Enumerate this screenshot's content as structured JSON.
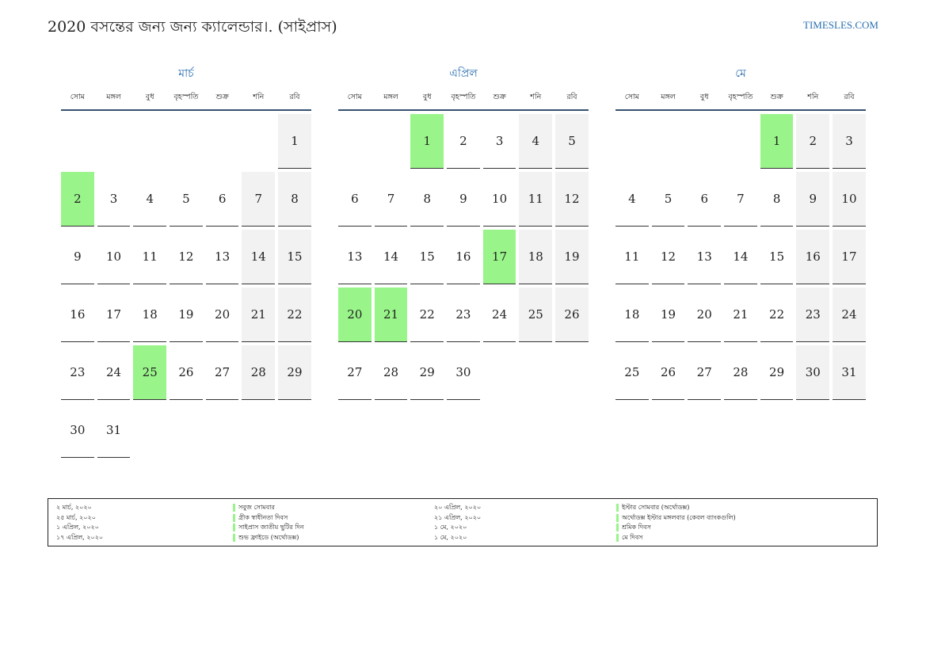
{
  "header": {
    "title": "2020 বসন্তের জন্য জন্য ক্যালেন্ডার।. (সাইপ্রাস)",
    "site": "TIMESLES.COM"
  },
  "colors": {
    "accent": "#2a6fb0",
    "holiday": "#99f58a",
    "weekend": "#f2f2f2"
  },
  "weekdays": [
    "সোম",
    "মঙ্গল",
    "বুধ",
    "বৃহস্পতি",
    "শুক্র",
    "শনি",
    "রবি"
  ],
  "months": [
    {
      "name": "মার্চ",
      "weeks": [
        [
          "",
          "",
          "",
          "",
          "",
          "",
          "1"
        ],
        [
          "2",
          "3",
          "4",
          "5",
          "6",
          "7",
          "8"
        ],
        [
          "9",
          "10",
          "11",
          "12",
          "13",
          "14",
          "15"
        ],
        [
          "16",
          "17",
          "18",
          "19",
          "20",
          "21",
          "22"
        ],
        [
          "23",
          "24",
          "25",
          "26",
          "27",
          "28",
          "29"
        ],
        [
          "30",
          "31",
          "",
          "",
          "",
          "",
          ""
        ]
      ],
      "holidays": [
        "2",
        "25"
      ]
    },
    {
      "name": "এপ্রিল",
      "weeks": [
        [
          "",
          "",
          "1",
          "2",
          "3",
          "4",
          "5"
        ],
        [
          "6",
          "7",
          "8",
          "9",
          "10",
          "11",
          "12"
        ],
        [
          "13",
          "14",
          "15",
          "16",
          "17",
          "18",
          "19"
        ],
        [
          "20",
          "21",
          "22",
          "23",
          "24",
          "25",
          "26"
        ],
        [
          "27",
          "28",
          "29",
          "30",
          "",
          "",
          ""
        ]
      ],
      "holidays": [
        "1",
        "17",
        "20",
        "21"
      ]
    },
    {
      "name": "মে",
      "weeks": [
        [
          "",
          "",
          "",
          "",
          "1",
          "2",
          "3"
        ],
        [
          "4",
          "5",
          "6",
          "7",
          "8",
          "9",
          "10"
        ],
        [
          "11",
          "12",
          "13",
          "14",
          "15",
          "16",
          "17"
        ],
        [
          "18",
          "19",
          "20",
          "21",
          "22",
          "23",
          "24"
        ],
        [
          "25",
          "26",
          "27",
          "28",
          "29",
          "30",
          "31"
        ]
      ],
      "holidays": [
        "1"
      ]
    }
  ],
  "legend": {
    "left_dates": [
      "২ মার্চ, ২০২০",
      "২৫ মার্চ, ২০২০",
      "১ এপ্রিল, ২০২০",
      "১৭ এপ্রিল, ২০২০"
    ],
    "left_names": [
      "সবুজ সোমবার",
      "গ্রীক স্বাধীনতা দিবস",
      "সাইপ্রাস জাতীয় ছুটির দিন",
      "শুভ ফ্রাইডে (অর্থোডক্স)"
    ],
    "right_dates": [
      "২০ এপ্রিল, ২০২০",
      "২১ এপ্রিল, ২০২০",
      "১ মে, ২০২০",
      "১ মে, ২০২০"
    ],
    "right_names": [
      "ইস্টার সোমবার (অর্থোডক্স)",
      "অর্থোডক্স ইস্টার মঙ্গলবার (কেবল ব্যাংকগুলি)",
      "শ্রমিক দিবস",
      "মে দিবস"
    ]
  }
}
